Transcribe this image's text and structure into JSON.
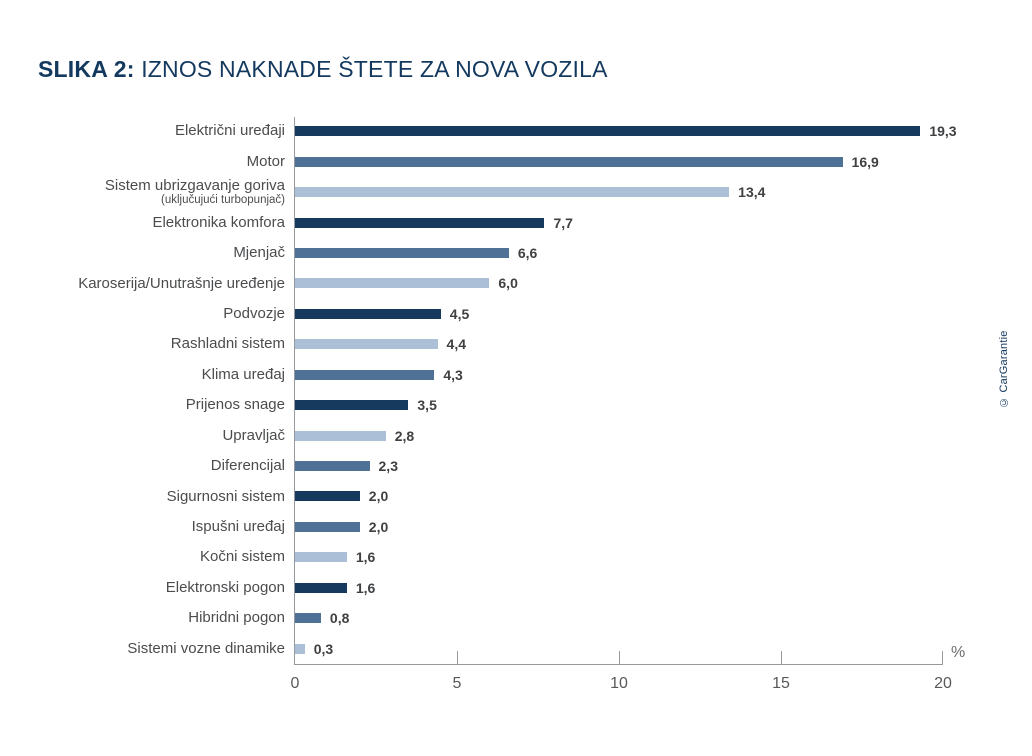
{
  "figure": {
    "title_prefix": "SLIKA 2:",
    "title_text": "IZNOS NAKNADE ŠTETE ZA NOVA VOZILA",
    "credit": "© CarGarantie"
  },
  "colors": {
    "dark": "#163A5E",
    "medium": "#4F7195",
    "light": "#ABBFD6",
    "title": "#14395F",
    "label_text": "#4B4C4E",
    "value_text": "#3F4042",
    "axis": "#98999C",
    "tick_text": "#58595B"
  },
  "chart_data": {
    "type": "bar",
    "orientation": "horizontal",
    "title": "SLIKA 2: IZNOS NAKNADE ŠTETE ZA NOVA VOZILA",
    "xlabel": "%",
    "unit_label": "%",
    "xlim": [
      0,
      20
    ],
    "xticks": [
      "0",
      "5",
      "10",
      "15",
      "20"
    ],
    "grid": "off",
    "legend": "none",
    "rows": [
      {
        "label": "Električni uređaji",
        "sub": "",
        "value": 19.3,
        "display": "19,3",
        "color": "dark"
      },
      {
        "label": "Motor",
        "sub": "",
        "value": 16.9,
        "display": "16,9",
        "color": "medium"
      },
      {
        "label": "Sistem ubrizgavanje goriva",
        "sub": "(uključujući turbopunjač)",
        "value": 13.4,
        "display": "13,4",
        "color": "light"
      },
      {
        "label": "Elektronika komfora",
        "sub": "",
        "value": 7.7,
        "display": "7,7",
        "color": "dark"
      },
      {
        "label": "Mjenjač",
        "sub": "",
        "value": 6.6,
        "display": "6,6",
        "color": "medium"
      },
      {
        "label": "Karoserija/Unutrašnje uređenje",
        "sub": "",
        "value": 6.0,
        "display": "6,0",
        "color": "light"
      },
      {
        "label": "Podvozje",
        "sub": "",
        "value": 4.5,
        "display": "4,5",
        "color": "dark"
      },
      {
        "label": "Rashladni sistem",
        "sub": "",
        "value": 4.4,
        "display": "4,4",
        "color": "light"
      },
      {
        "label": "Klima uređaj",
        "sub": "",
        "value": 4.3,
        "display": "4,3",
        "color": "medium"
      },
      {
        "label": "Prijenos snage",
        "sub": "",
        "value": 3.5,
        "display": "3,5",
        "color": "dark"
      },
      {
        "label": "Upravljač",
        "sub": "",
        "value": 2.8,
        "display": "2,8",
        "color": "light"
      },
      {
        "label": "Diferencijal",
        "sub": "",
        "value": 2.3,
        "display": "2,3",
        "color": "medium"
      },
      {
        "label": "Sigurnosni sistem",
        "sub": "",
        "value": 2.0,
        "display": "2,0",
        "color": "dark"
      },
      {
        "label": "Ispušni uređaj",
        "sub": "",
        "value": 2.0,
        "display": "2,0",
        "color": "medium"
      },
      {
        "label": "Kočni sistem",
        "sub": "",
        "value": 1.6,
        "display": "1,6",
        "color": "light"
      },
      {
        "label": "Elektronski pogon",
        "sub": "",
        "value": 1.6,
        "display": "1,6",
        "color": "dark"
      },
      {
        "label": "Hibridni pogon",
        "sub": "",
        "value": 0.8,
        "display": "0,8",
        "color": "medium"
      },
      {
        "label": "Sistemi vozne dinamike",
        "sub": "",
        "value": 0.3,
        "display": "0,3",
        "color": "light"
      }
    ]
  }
}
